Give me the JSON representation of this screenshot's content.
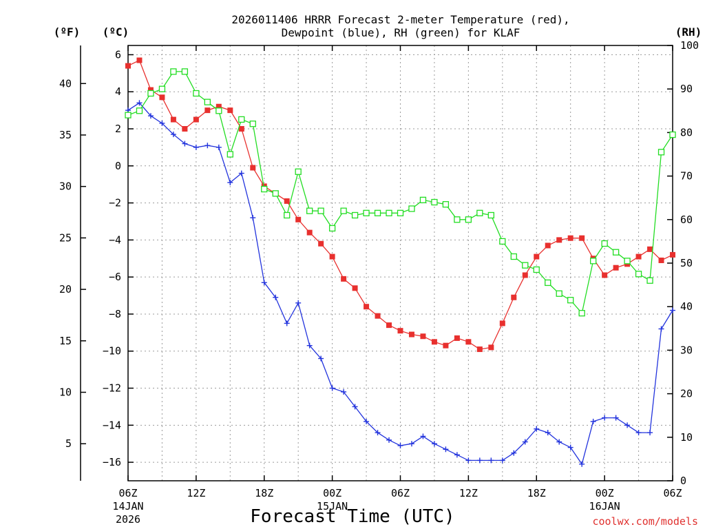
{
  "chart_data": {
    "type": "line",
    "title_line1": "2026011406 HRRR Forecast 2-meter Temperature (red),",
    "title_line2": "Dewpoint (blue), RH (green) for KLAF",
    "xlabel": "Forecast Time (UTC)",
    "credit": "coolwx.com/models",
    "unit_f": "(ºF)",
    "unit_c": "(ºC)",
    "unit_rh": "(RH)",
    "x_range_hours": [
      0,
      48
    ],
    "c_range": [
      -17,
      6.5
    ],
    "rh_range": [
      0,
      100
    ],
    "x_ticks": [
      {
        "h": 0,
        "label": "06Z"
      },
      {
        "h": 6,
        "label": "12Z"
      },
      {
        "h": 12,
        "label": "18Z"
      },
      {
        "h": 18,
        "label": "00Z"
      },
      {
        "h": 24,
        "label": "06Z"
      },
      {
        "h": 30,
        "label": "12Z"
      },
      {
        "h": 36,
        "label": "18Z"
      },
      {
        "h": 42,
        "label": "00Z"
      },
      {
        "h": 48,
        "label": "06Z"
      }
    ],
    "date_labels": [
      {
        "h": 0,
        "lines": [
          "14JAN",
          "2026"
        ]
      },
      {
        "h": 18,
        "lines": [
          "15JAN"
        ]
      },
      {
        "h": 42,
        "lines": [
          "16JAN"
        ]
      }
    ],
    "c_ticks": [
      6,
      4,
      2,
      0,
      -2,
      -4,
      -6,
      -8,
      -10,
      -12,
      -14,
      -16
    ],
    "f_ticks": [
      40,
      35,
      30,
      25,
      20,
      15,
      10,
      5
    ],
    "rh_ticks": [
      100,
      90,
      80,
      70,
      60,
      50,
      40,
      30,
      20,
      10,
      0
    ],
    "series": [
      {
        "name": "Temperature",
        "color": "#e8302e",
        "marker": "filled-square",
        "axis": "c",
        "values": [
          5.4,
          5.7,
          4.1,
          3.7,
          2.5,
          2.0,
          2.5,
          3.0,
          3.2,
          3.0,
          2.0,
          -0.1,
          -1.1,
          -1.5,
          -1.9,
          -2.9,
          -3.6,
          -4.2,
          -4.9,
          -6.1,
          -6.6,
          -7.6,
          -8.1,
          -8.6,
          -8.9,
          -9.1,
          -9.2,
          -9.5,
          -9.7,
          -9.3,
          -9.5,
          -9.9,
          -9.8,
          -8.5,
          -7.1,
          -5.9,
          -4.9,
          -4.3,
          -4.0,
          -3.9,
          -3.9,
          -5.0,
          -5.9,
          -5.5,
          -5.3,
          -4.9,
          -4.5,
          -5.1,
          -4.8
        ]
      },
      {
        "name": "Dewpoint",
        "color": "#2233dd",
        "marker": "plus",
        "axis": "c",
        "values": [
          3.0,
          3.4,
          2.7,
          2.3,
          1.7,
          1.2,
          1.0,
          1.1,
          1.0,
          -0.9,
          -0.4,
          -2.8,
          -6.3,
          -7.1,
          -8.5,
          -7.4,
          -9.7,
          -10.4,
          -12.0,
          -12.2,
          -13.0,
          -13.8,
          -14.4,
          -14.8,
          -15.1,
          -15.0,
          -14.6,
          -15.0,
          -15.3,
          -15.6,
          -15.9,
          -15.9,
          -15.9,
          -15.9,
          -15.5,
          -14.9,
          -14.2,
          -14.4,
          -14.9,
          -15.2,
          -16.1,
          -13.8,
          -13.6,
          -13.6,
          -14.0,
          -14.4,
          -14.4,
          -8.8,
          -7.8
        ]
      },
      {
        "name": "RH",
        "color": "#22dd22",
        "marker": "open-square",
        "axis": "rh",
        "values": [
          84,
          85,
          89,
          90,
          94,
          94,
          89,
          87,
          85,
          75,
          83,
          82,
          67,
          66,
          61,
          71,
          62,
          62,
          58,
          62,
          61,
          61.5,
          61.5,
          61.5,
          61.5,
          62.5,
          64.5,
          64,
          63.5,
          60,
          60,
          61.5,
          61,
          55,
          51.5,
          49.5,
          48.5,
          45.5,
          43,
          41.5,
          38.5,
          50.5,
          54.5,
          52.5,
          50.5,
          47.5,
          46,
          75.5,
          79.5
        ]
      }
    ]
  }
}
